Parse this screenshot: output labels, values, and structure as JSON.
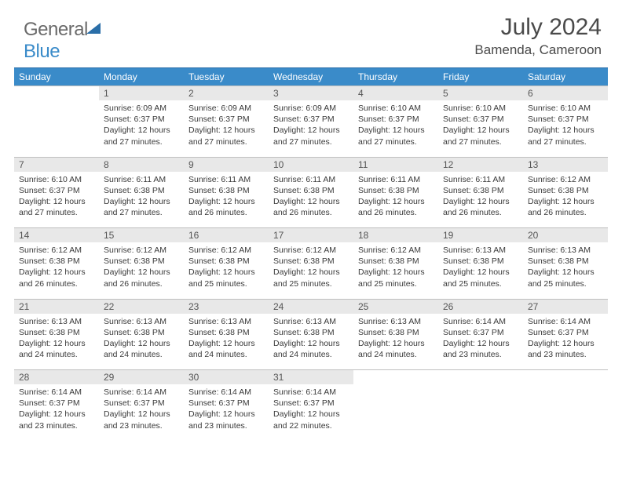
{
  "logo": {
    "part1": "General",
    "part2": "Blue"
  },
  "header": {
    "month": "July 2024",
    "location": "Bamenda, Cameroon"
  },
  "dayNames": [
    "Sunday",
    "Monday",
    "Tuesday",
    "Wednesday",
    "Thursday",
    "Friday",
    "Saturday"
  ],
  "colors": {
    "header_bg": "#3a8bc9",
    "header_text": "#ffffff",
    "daynum_bg": "#e8e8e8",
    "border": "#bfbfbf",
    "text": "#3a3a3a"
  },
  "weeks": [
    {
      "nums": [
        "",
        "1",
        "2",
        "3",
        "4",
        "5",
        "6"
      ],
      "cells": [
        null,
        {
          "sr": "Sunrise: 6:09 AM",
          "ss": "Sunset: 6:37 PM",
          "d1": "Daylight: 12 hours",
          "d2": "and 27 minutes."
        },
        {
          "sr": "Sunrise: 6:09 AM",
          "ss": "Sunset: 6:37 PM",
          "d1": "Daylight: 12 hours",
          "d2": "and 27 minutes."
        },
        {
          "sr": "Sunrise: 6:09 AM",
          "ss": "Sunset: 6:37 PM",
          "d1": "Daylight: 12 hours",
          "d2": "and 27 minutes."
        },
        {
          "sr": "Sunrise: 6:10 AM",
          "ss": "Sunset: 6:37 PM",
          "d1": "Daylight: 12 hours",
          "d2": "and 27 minutes."
        },
        {
          "sr": "Sunrise: 6:10 AM",
          "ss": "Sunset: 6:37 PM",
          "d1": "Daylight: 12 hours",
          "d2": "and 27 minutes."
        },
        {
          "sr": "Sunrise: 6:10 AM",
          "ss": "Sunset: 6:37 PM",
          "d1": "Daylight: 12 hours",
          "d2": "and 27 minutes."
        }
      ]
    },
    {
      "nums": [
        "7",
        "8",
        "9",
        "10",
        "11",
        "12",
        "13"
      ],
      "cells": [
        {
          "sr": "Sunrise: 6:10 AM",
          "ss": "Sunset: 6:37 PM",
          "d1": "Daylight: 12 hours",
          "d2": "and 27 minutes."
        },
        {
          "sr": "Sunrise: 6:11 AM",
          "ss": "Sunset: 6:38 PM",
          "d1": "Daylight: 12 hours",
          "d2": "and 27 minutes."
        },
        {
          "sr": "Sunrise: 6:11 AM",
          "ss": "Sunset: 6:38 PM",
          "d1": "Daylight: 12 hours",
          "d2": "and 26 minutes."
        },
        {
          "sr": "Sunrise: 6:11 AM",
          "ss": "Sunset: 6:38 PM",
          "d1": "Daylight: 12 hours",
          "d2": "and 26 minutes."
        },
        {
          "sr": "Sunrise: 6:11 AM",
          "ss": "Sunset: 6:38 PM",
          "d1": "Daylight: 12 hours",
          "d2": "and 26 minutes."
        },
        {
          "sr": "Sunrise: 6:11 AM",
          "ss": "Sunset: 6:38 PM",
          "d1": "Daylight: 12 hours",
          "d2": "and 26 minutes."
        },
        {
          "sr": "Sunrise: 6:12 AM",
          "ss": "Sunset: 6:38 PM",
          "d1": "Daylight: 12 hours",
          "d2": "and 26 minutes."
        }
      ]
    },
    {
      "nums": [
        "14",
        "15",
        "16",
        "17",
        "18",
        "19",
        "20"
      ],
      "cells": [
        {
          "sr": "Sunrise: 6:12 AM",
          "ss": "Sunset: 6:38 PM",
          "d1": "Daylight: 12 hours",
          "d2": "and 26 minutes."
        },
        {
          "sr": "Sunrise: 6:12 AM",
          "ss": "Sunset: 6:38 PM",
          "d1": "Daylight: 12 hours",
          "d2": "and 26 minutes."
        },
        {
          "sr": "Sunrise: 6:12 AM",
          "ss": "Sunset: 6:38 PM",
          "d1": "Daylight: 12 hours",
          "d2": "and 25 minutes."
        },
        {
          "sr": "Sunrise: 6:12 AM",
          "ss": "Sunset: 6:38 PM",
          "d1": "Daylight: 12 hours",
          "d2": "and 25 minutes."
        },
        {
          "sr": "Sunrise: 6:12 AM",
          "ss": "Sunset: 6:38 PM",
          "d1": "Daylight: 12 hours",
          "d2": "and 25 minutes."
        },
        {
          "sr": "Sunrise: 6:13 AM",
          "ss": "Sunset: 6:38 PM",
          "d1": "Daylight: 12 hours",
          "d2": "and 25 minutes."
        },
        {
          "sr": "Sunrise: 6:13 AM",
          "ss": "Sunset: 6:38 PM",
          "d1": "Daylight: 12 hours",
          "d2": "and 25 minutes."
        }
      ]
    },
    {
      "nums": [
        "21",
        "22",
        "23",
        "24",
        "25",
        "26",
        "27"
      ],
      "cells": [
        {
          "sr": "Sunrise: 6:13 AM",
          "ss": "Sunset: 6:38 PM",
          "d1": "Daylight: 12 hours",
          "d2": "and 24 minutes."
        },
        {
          "sr": "Sunrise: 6:13 AM",
          "ss": "Sunset: 6:38 PM",
          "d1": "Daylight: 12 hours",
          "d2": "and 24 minutes."
        },
        {
          "sr": "Sunrise: 6:13 AM",
          "ss": "Sunset: 6:38 PM",
          "d1": "Daylight: 12 hours",
          "d2": "and 24 minutes."
        },
        {
          "sr": "Sunrise: 6:13 AM",
          "ss": "Sunset: 6:38 PM",
          "d1": "Daylight: 12 hours",
          "d2": "and 24 minutes."
        },
        {
          "sr": "Sunrise: 6:13 AM",
          "ss": "Sunset: 6:38 PM",
          "d1": "Daylight: 12 hours",
          "d2": "and 24 minutes."
        },
        {
          "sr": "Sunrise: 6:14 AM",
          "ss": "Sunset: 6:37 PM",
          "d1": "Daylight: 12 hours",
          "d2": "and 23 minutes."
        },
        {
          "sr": "Sunrise: 6:14 AM",
          "ss": "Sunset: 6:37 PM",
          "d1": "Daylight: 12 hours",
          "d2": "and 23 minutes."
        }
      ]
    },
    {
      "nums": [
        "28",
        "29",
        "30",
        "31",
        "",
        "",
        ""
      ],
      "cells": [
        {
          "sr": "Sunrise: 6:14 AM",
          "ss": "Sunset: 6:37 PM",
          "d1": "Daylight: 12 hours",
          "d2": "and 23 minutes."
        },
        {
          "sr": "Sunrise: 6:14 AM",
          "ss": "Sunset: 6:37 PM",
          "d1": "Daylight: 12 hours",
          "d2": "and 23 minutes."
        },
        {
          "sr": "Sunrise: 6:14 AM",
          "ss": "Sunset: 6:37 PM",
          "d1": "Daylight: 12 hours",
          "d2": "and 23 minutes."
        },
        {
          "sr": "Sunrise: 6:14 AM",
          "ss": "Sunset: 6:37 PM",
          "d1": "Daylight: 12 hours",
          "d2": "and 22 minutes."
        },
        null,
        null,
        null
      ]
    }
  ]
}
